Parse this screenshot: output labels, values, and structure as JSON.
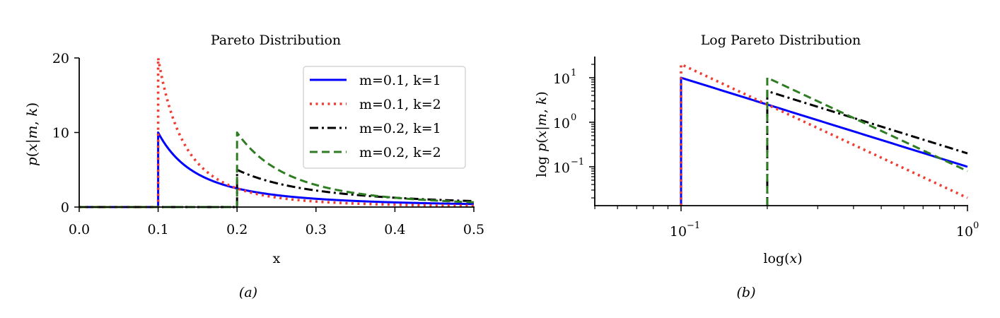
{
  "chart_data": [
    {
      "type": "line",
      "panel": "(a)",
      "title": "Pareto Distribution",
      "xlabel": "x",
      "ylabel": "p(x|m,k)",
      "xlim": [
        0.0,
        0.5
      ],
      "ylim": [
        0,
        20
      ],
      "xscale": "linear",
      "yscale": "linear",
      "xticks": [
        "0.0",
        "0.1",
        "0.2",
        "0.3",
        "0.4",
        "0.5"
      ],
      "yticks": [
        "0",
        "10",
        "20"
      ],
      "grid": false,
      "legend_position": "upper right",
      "series": [
        {
          "name": "m=0.1, k=1",
          "m": 0.1,
          "k": 1,
          "color": "#0000ff",
          "style": "solid"
        },
        {
          "name": "m=0.1, k=2",
          "m": 0.1,
          "k": 2,
          "color": "#f03c32",
          "style": "dotted"
        },
        {
          "name": "m=0.2, k=1",
          "m": 0.2,
          "k": 1,
          "color": "#000000",
          "style": "dashdot"
        },
        {
          "name": "m=0.2, k=2",
          "m": 0.2,
          "k": 2,
          "color": "#2e7d22",
          "style": "dashed"
        }
      ],
      "sample_points": {
        "x": [
          0.1,
          0.2,
          0.3,
          0.4,
          0.5
        ],
        "m=0.1, k=1": [
          10,
          2.5,
          1.11,
          0.625,
          0.4
        ],
        "m=0.1, k=2": [
          20,
          2.5,
          0.74,
          0.3125,
          0.16
        ],
        "m=0.2, k=1": [
          0,
          5,
          2.22,
          1.25,
          0.8
        ],
        "m=0.2, k=2": [
          0,
          10,
          2.96,
          1.25,
          0.64
        ]
      }
    },
    {
      "type": "line",
      "panel": "(b)",
      "title": "Log Pareto Distribution",
      "xlabel": "log(x)",
      "ylabel": "log p(x|m,k)",
      "xscale": "log",
      "yscale": "log",
      "xlim": [
        0.05,
        1.0
      ],
      "ylim": [
        0.015,
        30
      ],
      "xticks": [
        "10^-1",
        "10^0"
      ],
      "yticks": [
        "10^-1",
        "10^0",
        "10^1"
      ],
      "grid": false,
      "series": [
        {
          "name": "m=0.1, k=1",
          "m": 0.1,
          "k": 1,
          "color": "#0000ff",
          "style": "solid"
        },
        {
          "name": "m=0.1, k=2",
          "m": 0.1,
          "k": 2,
          "color": "#f03c32",
          "style": "dotted"
        },
        {
          "name": "m=0.2, k=1",
          "m": 0.2,
          "k": 1,
          "color": "#000000",
          "style": "dashdot"
        },
        {
          "name": "m=0.2, k=2",
          "m": 0.2,
          "k": 2,
          "color": "#2e7d22",
          "style": "dashed"
        }
      ]
    }
  ],
  "captions": {
    "a": "(a)",
    "b": "(b)"
  },
  "left": {
    "title": "Pareto Distribution",
    "xlabel": "x",
    "xticks": [
      "0.0",
      "0.1",
      "0.2",
      "0.3",
      "0.4",
      "0.5"
    ],
    "yticks": [
      "0",
      "10",
      "20"
    ],
    "legend": [
      "m=0.1, k=1",
      "m=0.1, k=2",
      "m=0.2, k=1",
      "m=0.2, k=2"
    ]
  },
  "right": {
    "title": "Log Pareto Distribution"
  }
}
